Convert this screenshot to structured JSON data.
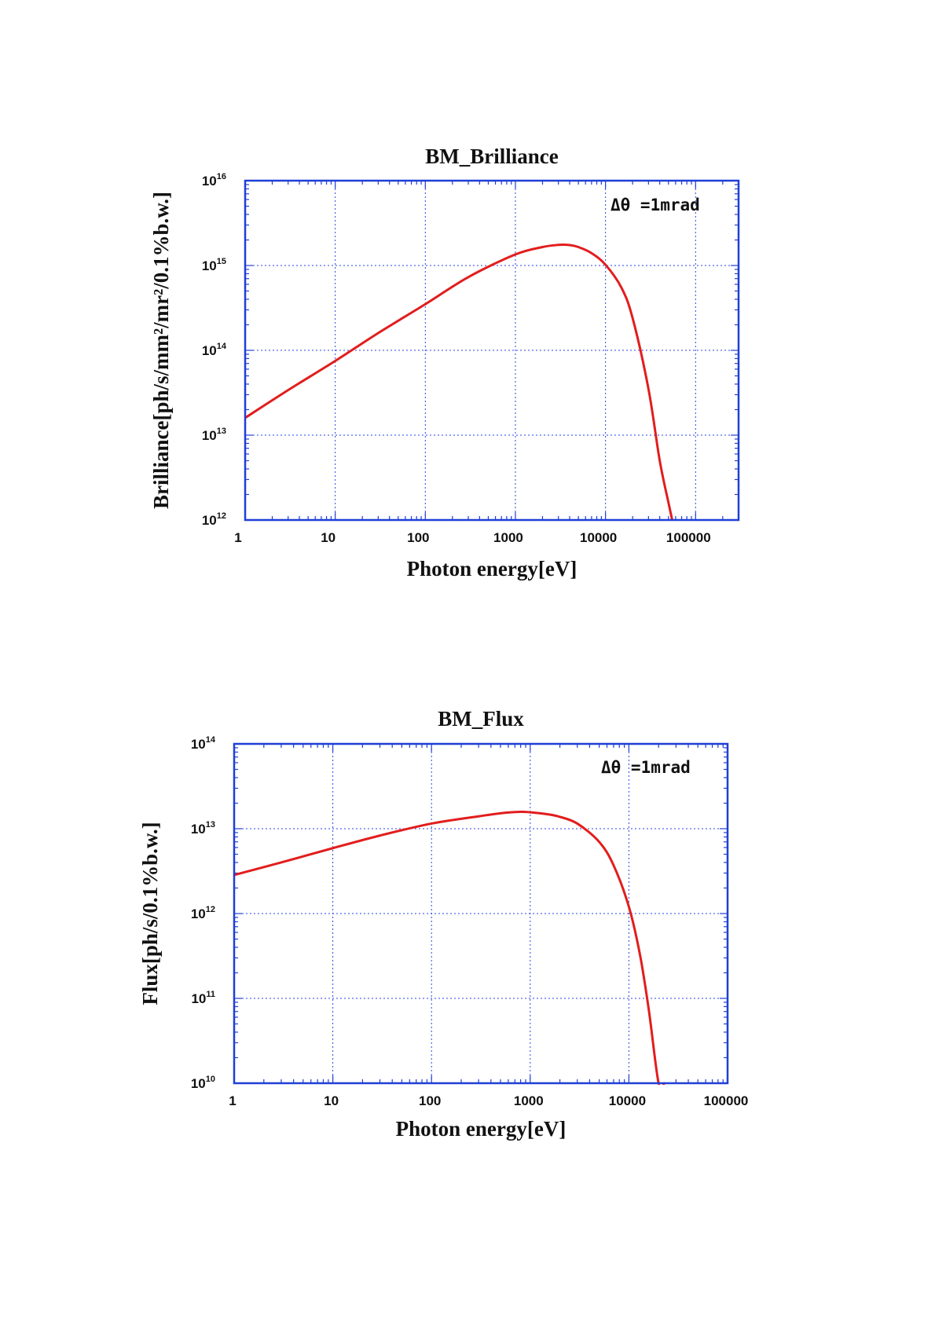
{
  "chart_data": [
    {
      "type": "line",
      "title": "BM_Brilliance",
      "xlabel": "Photon energy[eV]",
      "ylabel": "Brilliance[ph/s/mm²/mr²/0.1%b.w.]",
      "x_scale": "log",
      "y_scale": "log",
      "xlim": [
        1,
        300000
      ],
      "ylim": [
        1000000000000.0,
        1e+16
      ],
      "x_ticks": [
        "1",
        "10",
        "100",
        "1000",
        "10000",
        "100000"
      ],
      "y_ticks": [
        {
          "base": "10",
          "exp": "12"
        },
        {
          "base": "10",
          "exp": "13"
        },
        {
          "base": "10",
          "exp": "14"
        },
        {
          "base": "10",
          "exp": "15"
        },
        {
          "base": "10",
          "exp": "16"
        }
      ],
      "annotation": "Δθ =1mrad",
      "grid": true,
      "series": [
        {
          "color": "#e21d1d",
          "x": [
            1,
            3,
            10,
            30,
            100,
            300,
            1000,
            2000,
            3000,
            4000,
            5000,
            7000,
            10000,
            15000,
            20000,
            30000,
            40000,
            50000,
            55000
          ],
          "y": [
            16000000000000.0,
            34000000000000.0,
            75000000000000.0,
            160000000000000.0,
            350000000000000.0,
            730000000000000.0,
            1350000000000000.0,
            1650000000000000.0,
            1750000000000000.0,
            1740000000000000.0,
            1650000000000000.0,
            1400000000000000.0,
            1020000000000000.0,
            550000000000000.0,
            240000000000000.0,
            35000000000000.0,
            5000000000000.0,
            1600000000000.0,
            1000000000000.0
          ]
        }
      ]
    },
    {
      "type": "line",
      "title": "BM_Flux",
      "xlabel": "Photon energy[eV]",
      "ylabel": "Flux[ph/s/0.1%b.w.]",
      "x_scale": "log",
      "y_scale": "log",
      "xlim": [
        1,
        100000
      ],
      "ylim": [
        10000000000.0,
        100000000000000.0
      ],
      "x_ticks": [
        "1",
        "10",
        "100",
        "1000",
        "10000",
        "100000"
      ],
      "y_ticks": [
        {
          "base": "10",
          "exp": "10"
        },
        {
          "base": "10",
          "exp": "11"
        },
        {
          "base": "10",
          "exp": "12"
        },
        {
          "base": "10",
          "exp": "13"
        },
        {
          "base": "10",
          "exp": "14"
        }
      ],
      "annotation": "Δθ =1mrad",
      "grid": true,
      "series": [
        {
          "color": "#e21d1d",
          "x": [
            1,
            3,
            10,
            30,
            100,
            300,
            500,
            800,
            1000,
            1500,
            2000,
            3000,
            5000,
            7000,
            10000,
            13000,
            16000,
            20000,
            23000
          ],
          "y": [
            2850000000000.0,
            4000000000000.0,
            5900000000000.0,
            8300000000000.0,
            11500000000000.0,
            14000000000000.0,
            15200000000000.0,
            15800000000000.0,
            15600000000000.0,
            14800000000000.0,
            13800000000000.0,
            11500000000000.0,
            7000000000000.0,
            3700000000000.0,
            1200000000000.0,
            320000000000.0,
            70000000000.0,
            10000000000.0,
            10000000000.0
          ]
        }
      ]
    }
  ]
}
